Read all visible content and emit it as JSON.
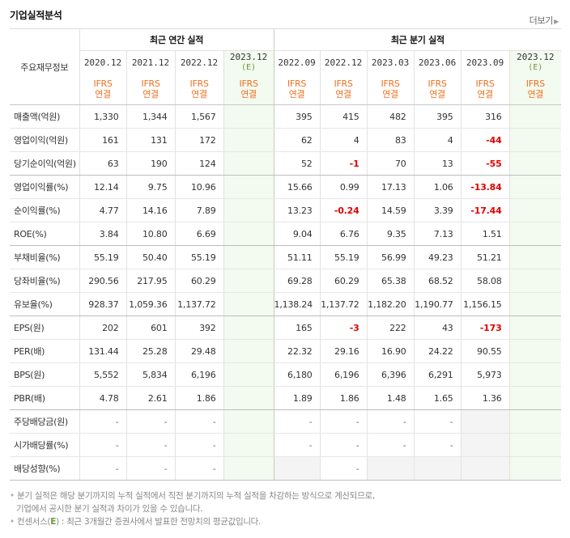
{
  "header": {
    "title": "기업실적분석",
    "more": "더보기",
    "more_icon": "chevron-right-icon"
  },
  "table": {
    "row_header_label": "주요재무정보",
    "groups": {
      "annual": "최근 연간 실적",
      "quarterly": "최근 분기 실적"
    },
    "periods": [
      "2020.12",
      "2021.12",
      "2022.12",
      "2023.12",
      "2022.09",
      "2022.12",
      "2023.03",
      "2023.06",
      "2023.09",
      "2023.12"
    ],
    "estimate_mark": "(E)",
    "ifrs": "IFRS",
    "consolidated": "연결",
    "rows": [
      {
        "label": "매출액(억원)",
        "values": [
          "1,330",
          "1,344",
          "1,567",
          "",
          "395",
          "415",
          "482",
          "395",
          "316",
          ""
        ]
      },
      {
        "label": "영업이익(억원)",
        "values": [
          "161",
          "131",
          "172",
          "",
          "62",
          "4",
          "83",
          "4",
          "-44",
          ""
        ]
      },
      {
        "label": "당기순이익(억원)",
        "values": [
          "63",
          "190",
          "124",
          "",
          "52",
          "-1",
          "70",
          "13",
          "-55",
          ""
        ]
      },
      {
        "label": "영업이익률(%)",
        "values": [
          "12.14",
          "9.75",
          "10.96",
          "",
          "15.66",
          "0.99",
          "17.13",
          "1.06",
          "-13.84",
          ""
        ]
      },
      {
        "label": "순이익률(%)",
        "values": [
          "4.77",
          "14.16",
          "7.89",
          "",
          "13.23",
          "-0.24",
          "14.59",
          "3.39",
          "-17.44",
          ""
        ]
      },
      {
        "label": "ROE(%)",
        "values": [
          "3.84",
          "10.80",
          "6.69",
          "",
          "9.04",
          "6.76",
          "9.35",
          "7.13",
          "1.51",
          ""
        ]
      },
      {
        "label": "부채비율(%)",
        "values": [
          "55.19",
          "50.40",
          "55.19",
          "",
          "51.11",
          "55.19",
          "56.99",
          "49.23",
          "51.21",
          ""
        ]
      },
      {
        "label": "당좌비율(%)",
        "values": [
          "290.56",
          "217.95",
          "60.29",
          "",
          "69.28",
          "60.29",
          "65.38",
          "68.52",
          "58.08",
          ""
        ]
      },
      {
        "label": "유보율(%)",
        "values": [
          "928.37",
          "1,059.36",
          "1,137.72",
          "",
          "1,138.24",
          "1,137.72",
          "1,182.20",
          "1,190.77",
          "1,156.15",
          ""
        ]
      },
      {
        "label": "EPS(원)",
        "values": [
          "202",
          "601",
          "392",
          "",
          "165",
          "-3",
          "222",
          "43",
          "-173",
          ""
        ]
      },
      {
        "label": "PER(배)",
        "values": [
          "131.44",
          "25.28",
          "29.48",
          "",
          "22.32",
          "29.16",
          "16.90",
          "24.22",
          "90.55",
          ""
        ]
      },
      {
        "label": "BPS(원)",
        "values": [
          "5,552",
          "5,834",
          "6,196",
          "",
          "6,180",
          "6,196",
          "6,396",
          "6,291",
          "5,973",
          ""
        ]
      },
      {
        "label": "PBR(배)",
        "values": [
          "4.78",
          "2.61",
          "1.86",
          "",
          "1.89",
          "1.86",
          "1.48",
          "1.65",
          "1.36",
          ""
        ]
      },
      {
        "label": "주당배당금(원)",
        "values": [
          "-",
          "-",
          "-",
          "",
          "-",
          "-",
          "-",
          "-",
          "",
          ""
        ]
      },
      {
        "label": "시가배당률(%)",
        "values": [
          "-",
          "-",
          "-",
          "",
          "-",
          "-",
          "-",
          "-",
          "",
          ""
        ]
      },
      {
        "label": "배당성향(%)",
        "values": [
          "-",
          "-",
          "-",
          "",
          "",
          "-",
          "",
          "",
          "",
          ""
        ]
      }
    ]
  },
  "footnotes": {
    "line1": "분기 실적은 해당 분기까지의 누적 실적에서 직전 분기까지의 누적 실적을 차감하는 방식으로 계산되므로,",
    "line2": "기업에서 공시한 분기 실적과 차이가 있을 수 있습니다.",
    "line3_prefix": "컨센서스(",
    "line3_mark": "E",
    "line3_suffix": ") : 최근 3개월간 증권사에서 발표한 전망치의 평균값입니다."
  }
}
